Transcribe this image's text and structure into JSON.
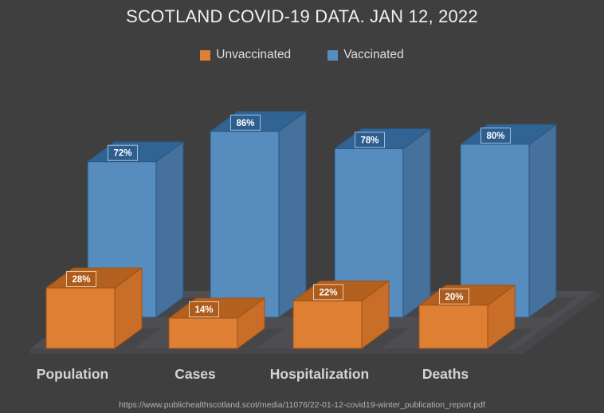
{
  "page": {
    "background_color": "#3F3F40"
  },
  "chart_data": {
    "type": "bar",
    "subtype": "3d-clustered-column",
    "title": "SCOTLAND COVID-19 DATA. JAN 12, 2022",
    "categories": [
      "Population",
      "Cases",
      "Hospitalization",
      "Deaths"
    ],
    "series": [
      {
        "name": "Unvaccinated",
        "values": [
          28,
          14,
          22,
          20
        ],
        "labels": [
          "28%",
          "14%",
          "22%",
          "20%"
        ],
        "color": "#DF7F33",
        "color_top": "#B4611F",
        "color_side": "#C96E28",
        "edge_color": "#9E5014",
        "label_bg": "#AE5C1D",
        "label_border": "#EACCA9"
      },
      {
        "name": "Vaccinated",
        "values": [
          72,
          86,
          78,
          80
        ],
        "labels": [
          "72%",
          "86%",
          "78%",
          "80%"
        ],
        "color": "#568CBE",
        "color_top": "#316493",
        "color_side": "#47719D",
        "edge_color": "#2A5580",
        "label_bg": "#2D5E8E",
        "label_border": "#9FC0DC"
      }
    ],
    "value_unit": "%",
    "axis": {
      "value_axis_visible": false,
      "ylim": [
        0,
        100
      ]
    },
    "legend": {
      "position": "top-center"
    },
    "grid": false,
    "floor_color": "#4E4E52",
    "floor_edge_color": "#47474B",
    "data_label_text_color": "#FFFFFF",
    "category_label_color": "#D4D4D4",
    "title_color": "#F0F0F0",
    "source_url": "https://www.publichealthscotland.scot/media/11076/22-01-12-covid19-winter_publication_report.pdf"
  }
}
